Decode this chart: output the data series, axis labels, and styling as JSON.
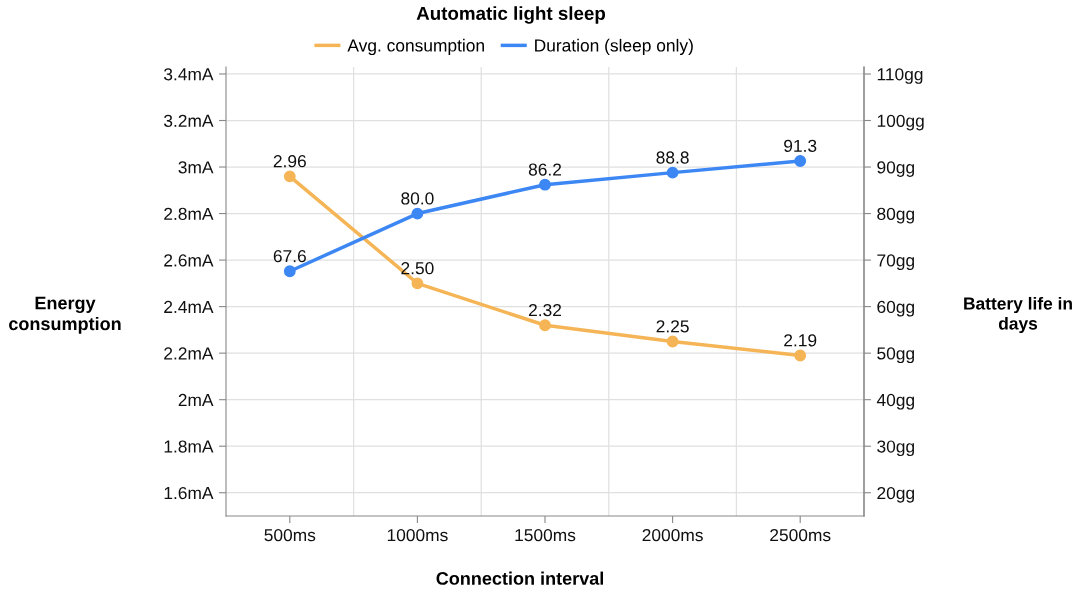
{
  "chart_data": {
    "type": "line",
    "title": "Automatic light sleep",
    "xlabel": "Connection interval",
    "ylabel": "Energy\nconsumption",
    "y2label": "Battery life in\ndays",
    "categories": [
      "500ms",
      "1000ms",
      "1500ms",
      "2000ms",
      "2500ms"
    ],
    "series": [
      {
        "name": "Avg. consumption",
        "color": "#f5b556",
        "values": [
          2.96,
          2.5,
          2.32,
          2.25,
          2.19
        ],
        "value_labels": [
          "2.96",
          "2.50",
          "2.32",
          "2.25",
          "2.19"
        ]
      },
      {
        "name": "Duration (sleep only)",
        "color": "#3c87f4",
        "axis": "y2",
        "values": [
          67.6,
          80.0,
          86.2,
          88.8,
          91.3
        ],
        "value_labels": [
          "67.6",
          "80.0",
          "86.2",
          "88.8",
          "91.3"
        ]
      }
    ],
    "ylim": [
      1.5,
      3.43
    ],
    "yticks": [
      {
        "value": 1.6,
        "label": "1.6mA"
      },
      {
        "value": 1.8,
        "label": "1.8mA"
      },
      {
        "value": 2,
        "label": "2mA"
      },
      {
        "value": 2.2,
        "label": "2.2mA"
      },
      {
        "value": 2.4,
        "label": "2.4mA"
      },
      {
        "value": 2.6,
        "label": "2.6mA"
      },
      {
        "value": 2.8,
        "label": "2.8mA"
      },
      {
        "value": 3,
        "label": "3mA"
      },
      {
        "value": 3.2,
        "label": "3.2mA"
      },
      {
        "value": 3.4,
        "label": "3.4mA"
      }
    ],
    "y2lim": [
      15,
      111.5
    ],
    "y2ticks": [
      {
        "value": 20,
        "label": "20gg"
      },
      {
        "value": 30,
        "label": "30gg"
      },
      {
        "value": 40,
        "label": "40gg"
      },
      {
        "value": 50,
        "label": "50gg"
      },
      {
        "value": 60,
        "label": "60gg"
      },
      {
        "value": 70,
        "label": "70gg"
      },
      {
        "value": 80,
        "label": "80gg"
      },
      {
        "value": 90,
        "label": "90gg"
      },
      {
        "value": 100,
        "label": "100gg"
      },
      {
        "value": 110,
        "label": "110gg"
      }
    ],
    "grid": true,
    "legend": "top",
    "marker": "circle",
    "line_style": "solid"
  }
}
